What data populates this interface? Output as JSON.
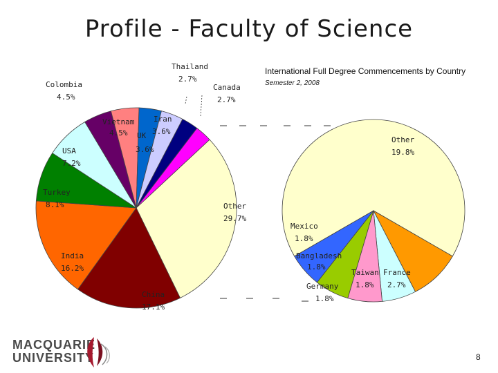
{
  "slide": {
    "title": "Profile - Faculty of Science",
    "page_number": "8"
  },
  "logo": {
    "line1": "MACQUARIE",
    "line2": "UNIVERSITY"
  },
  "chart_data": [
    {
      "type": "pie",
      "title": "International Full Degree Commencements by Country",
      "subtitle": "Semester 2, 2008",
      "unit": "%",
      "slices": [
        {
          "label": "Other",
          "value": 29.7,
          "display": "29.7%",
          "color": "#ffffcc"
        },
        {
          "label": "China",
          "value": 17.1,
          "display": "17.1%",
          "color": "#800000"
        },
        {
          "label": "India",
          "value": 16.2,
          "display": "16.2%",
          "color": "#ff6600"
        },
        {
          "label": "Turkey",
          "value": 8.1,
          "display": "8.1%",
          "color": "#008000"
        },
        {
          "label": "USA",
          "value": 7.2,
          "display": "7.2%",
          "color": "#ccffff"
        },
        {
          "label": "Colombia",
          "value": 4.5,
          "display": "4.5%",
          "color": "#660066"
        },
        {
          "label": "Vietnam",
          "value": 4.5,
          "display": "4.5%",
          "color": "#ff8080"
        },
        {
          "label": "UK",
          "value": 3.6,
          "display": "3.6%",
          "color": "#0066cc"
        },
        {
          "label": "Iran",
          "value": 3.6,
          "display": "3.6%",
          "color": "#ccccff"
        },
        {
          "label": "Thailand",
          "value": 2.7,
          "display": "2.7%",
          "color": "#000080"
        },
        {
          "label": "Canada",
          "value": 2.7,
          "display": "2.7%",
          "color": "#ff00ff"
        }
      ]
    },
    {
      "type": "pie",
      "title": "",
      "breakdown_of": "Other",
      "unit": "%",
      "slices": [
        {
          "label": "Other",
          "value": 19.8,
          "display": "19.8%",
          "color": "#ffffcc"
        },
        {
          "label": "France",
          "value": 2.7,
          "display": "2.7%",
          "color": "#ff9900"
        },
        {
          "label": "Taiwan",
          "value": 1.8,
          "display": "1.8%",
          "color": "#ccffff"
        },
        {
          "label": "Germany",
          "value": 1.8,
          "display": "1.8%",
          "color": "#ff99cc"
        },
        {
          "label": "Bangladesh",
          "value": 1.8,
          "display": "1.8%",
          "color": "#99cc00"
        },
        {
          "label": "Mexico",
          "value": 1.8,
          "display": "1.8%",
          "color": "#3366ff"
        }
      ]
    }
  ]
}
